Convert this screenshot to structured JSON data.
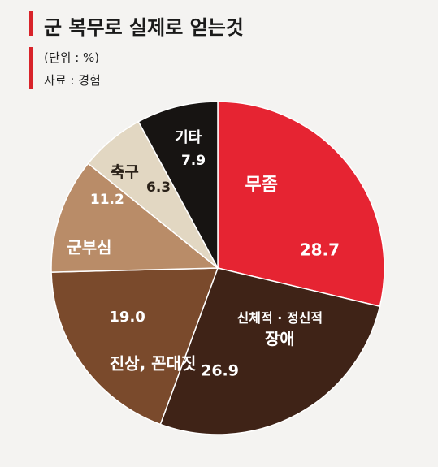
{
  "header": {
    "title": "군 복무로 실제로 얻는것",
    "unit_label": "(단위 : %)",
    "source_key": "자료",
    "source_value": "경험"
  },
  "colors": {
    "accent": "#d8232a",
    "background": "#f4f3f1"
  },
  "chart_data": {
    "type": "pie",
    "title": "군 복무로 실제로 얻는것",
    "unit": "%",
    "start_angle_deg": 0,
    "direction": "clockwise",
    "slices": [
      {
        "name": "무좀",
        "value": 28.7,
        "color": "#e62432",
        "text_color": "#ffffff"
      },
      {
        "name": "신체적 · 정신적",
        "name_line2": "장애",
        "value": 26.9,
        "color": "#3f2317",
        "text_color": "#ffffff"
      },
      {
        "name": "진상, 꼰대짓",
        "value": 19.0,
        "color": "#7a4a2c",
        "text_color": "#ffffff"
      },
      {
        "name": "군부심",
        "value": 11.2,
        "color": "#b98c68",
        "text_color": "#ffffff"
      },
      {
        "name": "축구",
        "value": 6.3,
        "color": "#e2d7c2",
        "text_color": "#2a2118"
      },
      {
        "name": "기타",
        "value": 7.9,
        "color": "#171412",
        "text_color": "#ffffff"
      }
    ]
  }
}
